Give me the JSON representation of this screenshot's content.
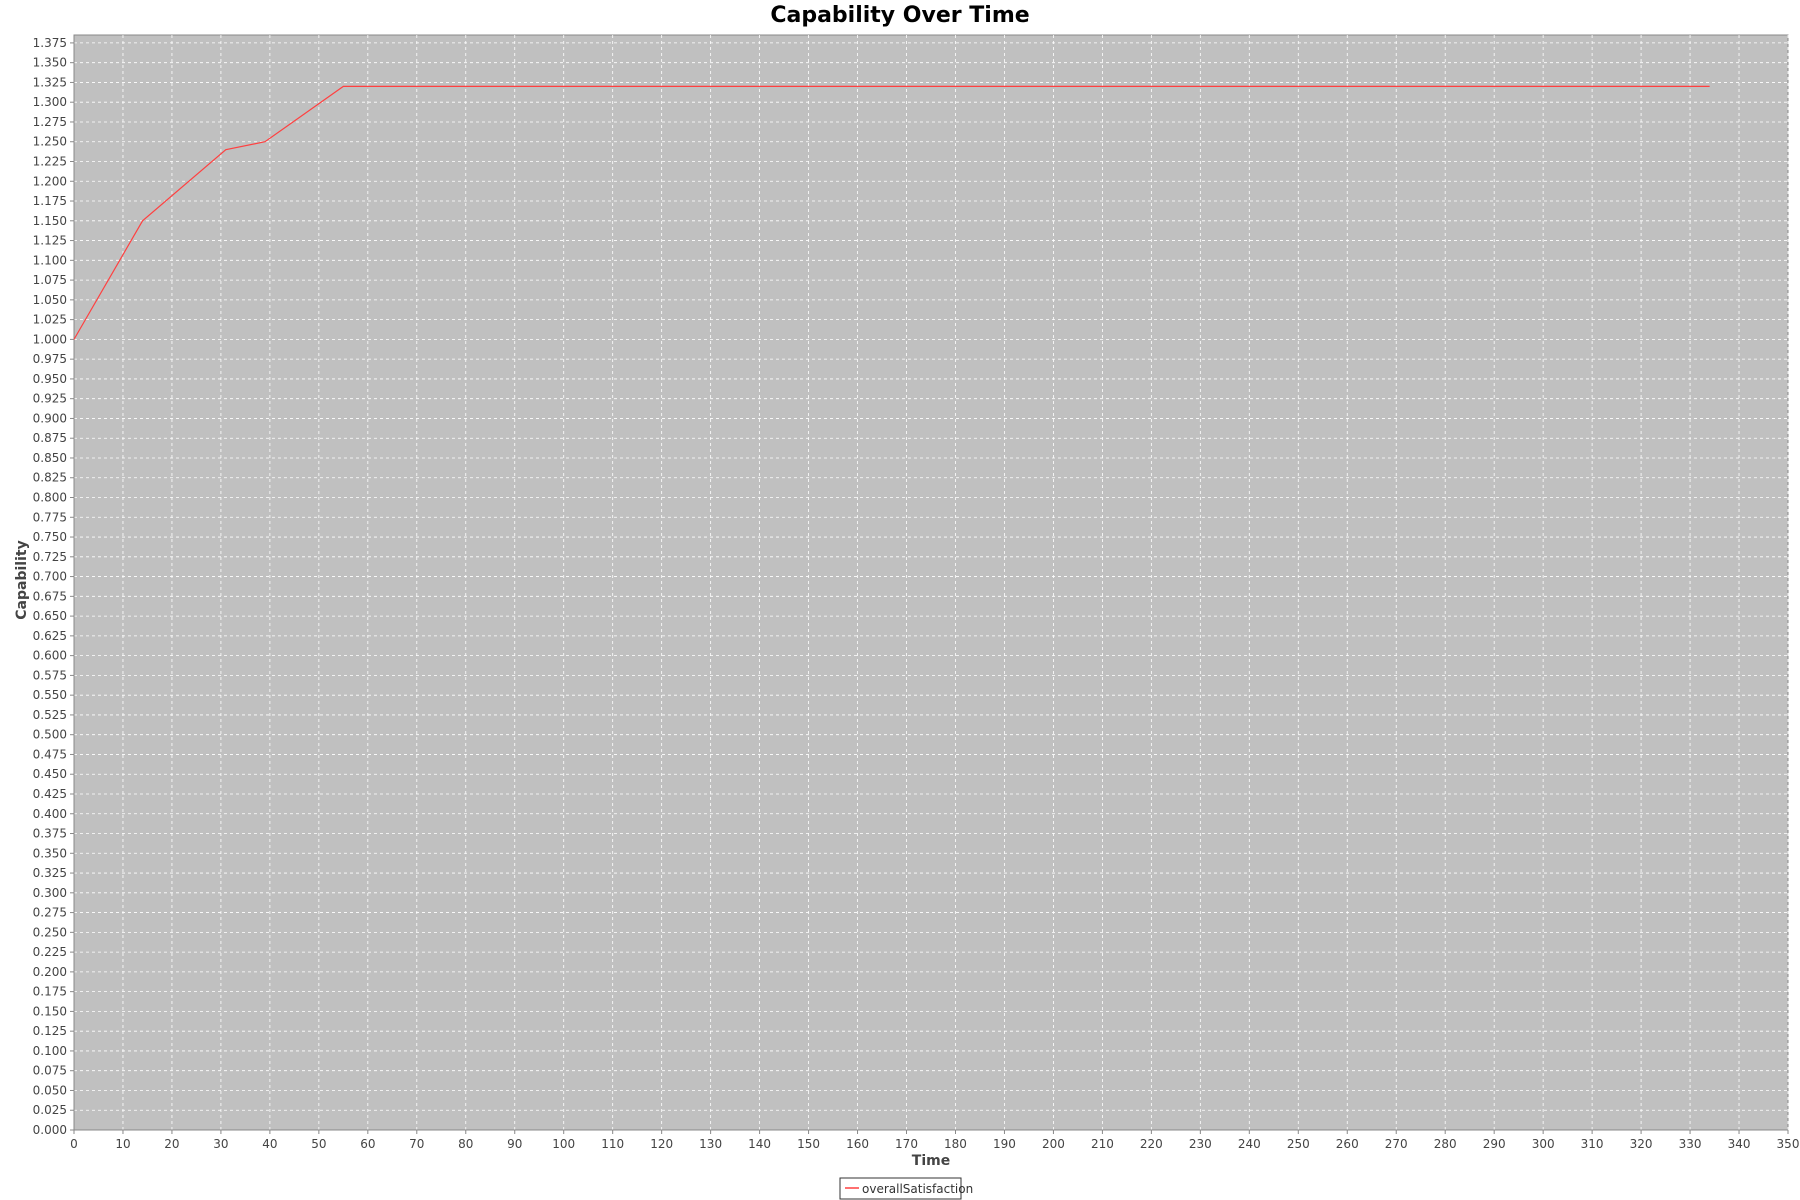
{
  "chart_data": {
    "type": "line",
    "title": "Capability Over Time",
    "xlabel": "Time",
    "ylabel": "Capability",
    "xlim": [
      0,
      350
    ],
    "ylim": [
      0,
      1.385
    ],
    "x_ticks": [
      0,
      10,
      20,
      30,
      40,
      50,
      60,
      70,
      80,
      90,
      100,
      110,
      120,
      130,
      140,
      150,
      160,
      170,
      180,
      190,
      200,
      210,
      220,
      230,
      240,
      250,
      260,
      270,
      280,
      290,
      300,
      310,
      320,
      330,
      340,
      350
    ],
    "y_ticks": [
      "0.000",
      "0.025",
      "0.050",
      "0.075",
      "0.100",
      "0.125",
      "0.150",
      "0.175",
      "0.200",
      "0.225",
      "0.250",
      "0.275",
      "0.300",
      "0.325",
      "0.350",
      "0.375",
      "0.400",
      "0.425",
      "0.450",
      "0.475",
      "0.500",
      "0.525",
      "0.550",
      "0.575",
      "0.600",
      "0.625",
      "0.650",
      "0.675",
      "0.700",
      "0.725",
      "0.750",
      "0.775",
      "0.800",
      "0.825",
      "0.850",
      "0.875",
      "0.900",
      "0.925",
      "0.950",
      "0.975",
      "1.000",
      "1.025",
      "1.050",
      "1.075",
      "1.100",
      "1.125",
      "1.150",
      "1.175",
      "1.200",
      "1.225",
      "1.250",
      "1.275",
      "1.300",
      "1.325",
      "1.350",
      "1.375"
    ],
    "grid": true,
    "legend_position": "bottom",
    "plot_background": "#c0c0c0",
    "series": [
      {
        "name": "overallSatisfaction",
        "color": "#ff4040",
        "x": [
          0,
          14,
          31,
          39,
          55,
          334
        ],
        "y": [
          1.0,
          1.15,
          1.24,
          1.25,
          1.32,
          1.32
        ]
      }
    ]
  }
}
